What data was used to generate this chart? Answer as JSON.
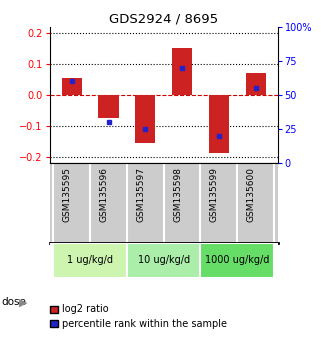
{
  "title": "GDS2924 / 8695",
  "samples": [
    "GSM135595",
    "GSM135596",
    "GSM135597",
    "GSM135598",
    "GSM135599",
    "GSM135600"
  ],
  "log2_ratios": [
    0.055,
    -0.075,
    -0.155,
    0.15,
    -0.185,
    0.072
  ],
  "percentile_ranks": [
    0.6,
    0.3,
    0.25,
    0.7,
    0.2,
    0.55
  ],
  "doses": [
    {
      "label": "1 ug/kg/d",
      "samples": [
        0,
        1
      ],
      "color": "#cdf5b0"
    },
    {
      "label": "10 ug/kg/d",
      "samples": [
        2,
        3
      ],
      "color": "#aaeeaa"
    },
    {
      "label": "1000 ug/kg/d",
      "samples": [
        4,
        5
      ],
      "color": "#66dd66"
    }
  ],
  "ylim": [
    -0.22,
    0.22
  ],
  "yticks_left": [
    -0.2,
    -0.1,
    0.0,
    0.1,
    0.2
  ],
  "yticks_right": [
    0,
    25,
    50,
    75,
    100
  ],
  "bar_color": "#cc2222",
  "percentile_color": "#2222cc",
  "zero_line_color": "#cc0000",
  "grid_color": "#000000",
  "bg_color": "#ffffff",
  "sample_bg_color": "#cccccc",
  "bar_width": 0.55
}
